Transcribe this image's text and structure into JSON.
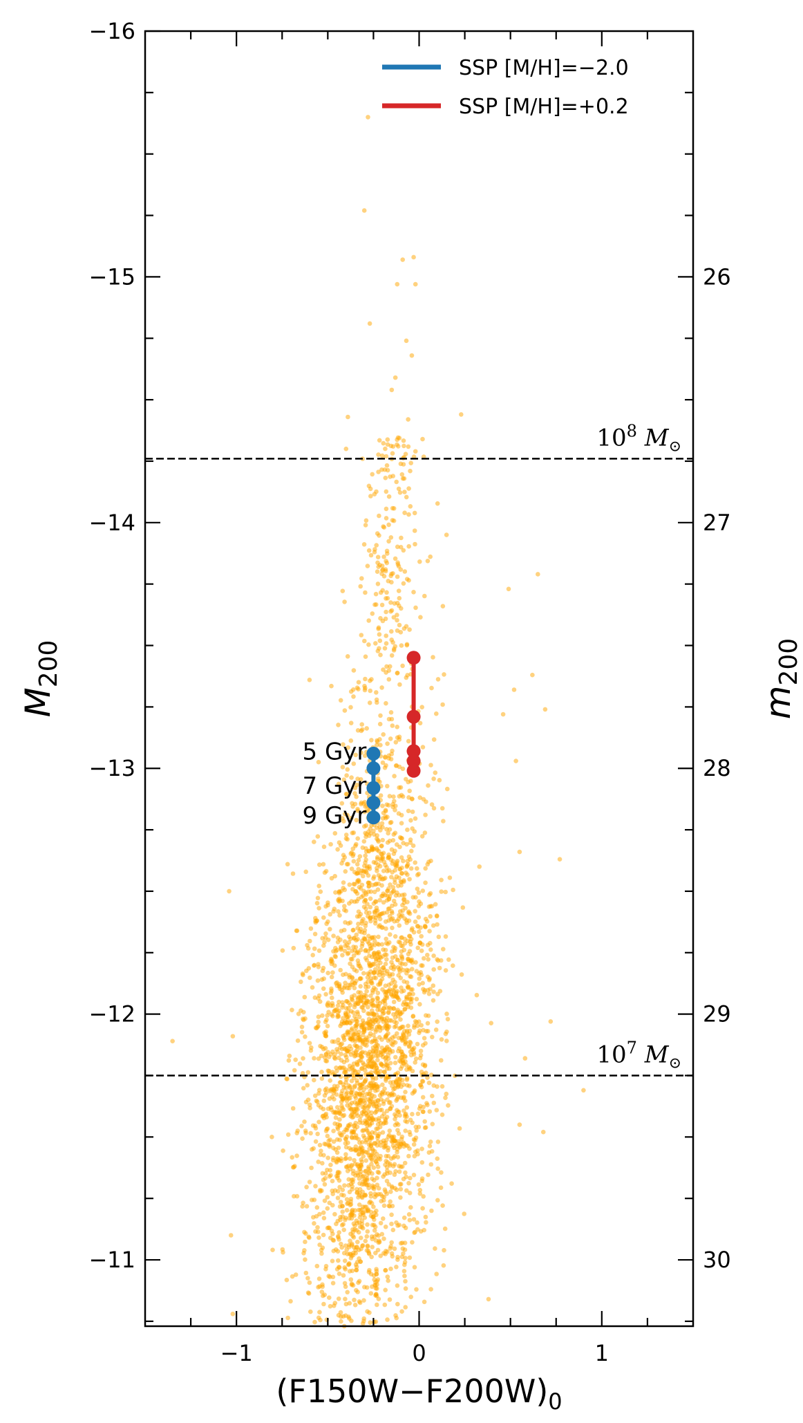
{
  "chart_data": {
    "type": "scatter",
    "xlabel": "(F150W−F200W)",
    "xlabel_sub": "0",
    "ylabel": "M",
    "ylabel_sub": "200",
    "y2label": "m",
    "y2label_sub": "200",
    "xlim": [
      -1.5,
      1.5
    ],
    "ylim": [
      -10.73,
      -16.0
    ],
    "y2lim": [
      30.27,
      25.0
    ],
    "y2_offset": 41.0,
    "x_ticks": [
      -1,
      0,
      1
    ],
    "x_tick_labels": [
      "−1",
      "0",
      "1"
    ],
    "y_ticks": [
      -16,
      -15,
      -14,
      -13,
      -12,
      -11
    ],
    "y_tick_labels": [
      "−16",
      "−15",
      "−14",
      "−13",
      "−12",
      "−11"
    ],
    "y2_ticks": [
      26,
      27,
      28,
      29,
      30
    ],
    "y2_tick_labels": [
      "26",
      "27",
      "28",
      "29",
      "30"
    ],
    "grid": false,
    "legend_position": "top-right",
    "scatter_color": "#ffa500",
    "scatter_cloud": {
      "description_levels": "dense population of galaxies",
      "n_points": 3200,
      "color_center_at_mag": [
        [
          -11.0,
          -0.33
        ],
        [
          -12.0,
          -0.25
        ],
        [
          -13.0,
          -0.2
        ],
        [
          -14.0,
          -0.15
        ],
        [
          -14.6,
          -0.1
        ]
      ],
      "color_spread_sigma": 0.17,
      "mag_peak": -11.85,
      "mag_range": [
        -10.73,
        -14.35
      ]
    },
    "scatter_outliers": [
      {
        "x": -0.28,
        "y": -15.65
      },
      {
        "x": -0.3,
        "y": -15.27
      },
      {
        "x": -0.09,
        "y": -15.07
      },
      {
        "x": -0.03,
        "y": -15.08
      },
      {
        "x": -0.02,
        "y": -14.97
      },
      {
        "x": -0.27,
        "y": -14.81
      },
      {
        "x": -0.12,
        "y": -14.97
      },
      {
        "x": -0.04,
        "y": -14.68
      },
      {
        "x": -0.07,
        "y": -14.74
      },
      {
        "x": -0.13,
        "y": -14.59
      },
      {
        "x": -0.15,
        "y": -14.54
      },
      {
        "x": 0.23,
        "y": -14.44
      },
      {
        "x": -0.39,
        "y": -14.43
      },
      {
        "x": -0.06,
        "y": -14.42
      },
      {
        "x": -0.4,
        "y": -14.3
      },
      {
        "x": -0.02,
        "y": -14.29
      },
      {
        "x": 0.15,
        "y": -13.95
      },
      {
        "x": 0.13,
        "y": -13.66
      },
      {
        "x": 0.49,
        "y": -13.73
      },
      {
        "x": 0.65,
        "y": -13.79
      },
      {
        "x": 0.46,
        "y": -13.22
      },
      {
        "x": 0.52,
        "y": -13.32
      },
      {
        "x": 0.62,
        "y": -13.38
      },
      {
        "x": 0.69,
        "y": -13.24
      },
      {
        "x": 0.53,
        "y": -13.03
      },
      {
        "x": 0.55,
        "y": -12.66
      },
      {
        "x": 0.77,
        "y": -12.63
      },
      {
        "x": 0.33,
        "y": -12.6
      },
      {
        "x": -0.6,
        "y": -13.36
      },
      {
        "x": -0.72,
        "y": -12.61
      },
      {
        "x": -1.04,
        "y": -12.5
      },
      {
        "x": -0.71,
        "y": -11.83
      },
      {
        "x": -1.35,
        "y": -11.89
      },
      {
        "x": -1.02,
        "y": -11.91
      },
      {
        "x": 0.9,
        "y": -11.69
      },
      {
        "x": 0.68,
        "y": -11.52
      },
      {
        "x": 0.72,
        "y": -11.97
      },
      {
        "x": 0.58,
        "y": -11.82
      },
      {
        "x": 0.38,
        "y": -10.84
      },
      {
        "x": -1.03,
        "y": -11.1
      },
      {
        "x": -1.02,
        "y": -10.78
      },
      {
        "x": 0.55,
        "y": -11.55
      }
    ],
    "series": [
      {
        "name": "SSP [M/H]=−2.0",
        "color": "#1f77b4",
        "points": [
          {
            "x": -0.25,
            "y": -13.06
          },
          {
            "x": -0.25,
            "y": -13.0
          },
          {
            "x": -0.25,
            "y": -12.92
          },
          {
            "x": -0.25,
            "y": -12.86
          },
          {
            "x": -0.25,
            "y": -12.8
          }
        ]
      },
      {
        "name": "SSP [M/H]=+0.2",
        "color": "#d62728",
        "points": [
          {
            "x": -0.03,
            "y": -13.45
          },
          {
            "x": -0.03,
            "y": -13.21
          },
          {
            "x": -0.03,
            "y": -13.07
          },
          {
            "x": -0.03,
            "y": -13.03
          },
          {
            "x": -0.03,
            "y": -12.99
          }
        ]
      }
    ],
    "annotations": {
      "age_labels": [
        {
          "text": "5 Gyr",
          "x": -0.25,
          "y": -13.07
        },
        {
          "text": "7 Gyr",
          "x": -0.25,
          "y": -12.93
        },
        {
          "text": "9 Gyr",
          "x": -0.25,
          "y": -12.81
        }
      ],
      "mass_lines": [
        {
          "y": -14.26,
          "label_base": "10",
          "label_exp": "8",
          "label_unit": "M",
          "label_sun": "⊙"
        },
        {
          "y": -11.75,
          "label_base": "10",
          "label_exp": "7",
          "label_unit": "M",
          "label_sun": "⊙"
        }
      ]
    }
  }
}
